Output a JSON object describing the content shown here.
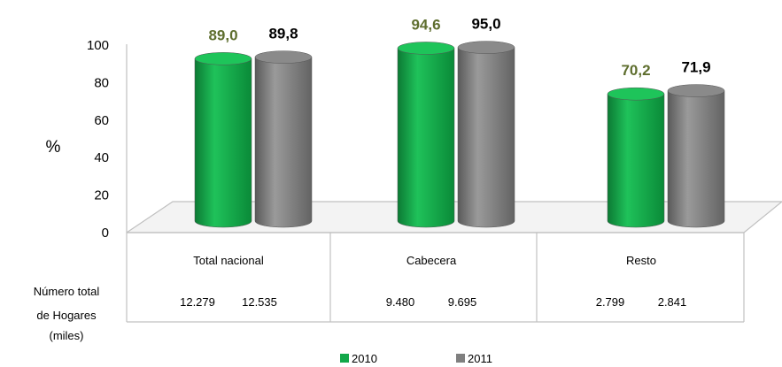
{
  "chart_data": {
    "type": "bar",
    "ylabel": "%",
    "ylim": [
      0,
      100
    ],
    "yticks": [
      0,
      20,
      40,
      60,
      80,
      100
    ],
    "categories": [
      "Total nacional",
      "Cabecera",
      "Resto"
    ],
    "series": [
      {
        "name": "2010",
        "values": [
          89.0,
          94.6,
          70.2
        ],
        "labels": [
          "89,0",
          "94,6",
          "70,2"
        ],
        "color": "#12a84a",
        "label_color": "#5e6e2e"
      },
      {
        "name": "2011",
        "values": [
          89.8,
          95.0,
          71.9
        ],
        "labels": [
          "89,8",
          "95,0",
          "71,9"
        ],
        "color": "#7f7f7f",
        "label_color": "#000000"
      }
    ],
    "table": {
      "row_label_lines": [
        "Número total",
        "de Hogares",
        "(miles)"
      ],
      "values": [
        [
          "12.279",
          "12.535"
        ],
        [
          "9.480",
          "9.695"
        ],
        [
          "2.799",
          "2.841"
        ]
      ]
    },
    "legend_position": "bottom"
  }
}
